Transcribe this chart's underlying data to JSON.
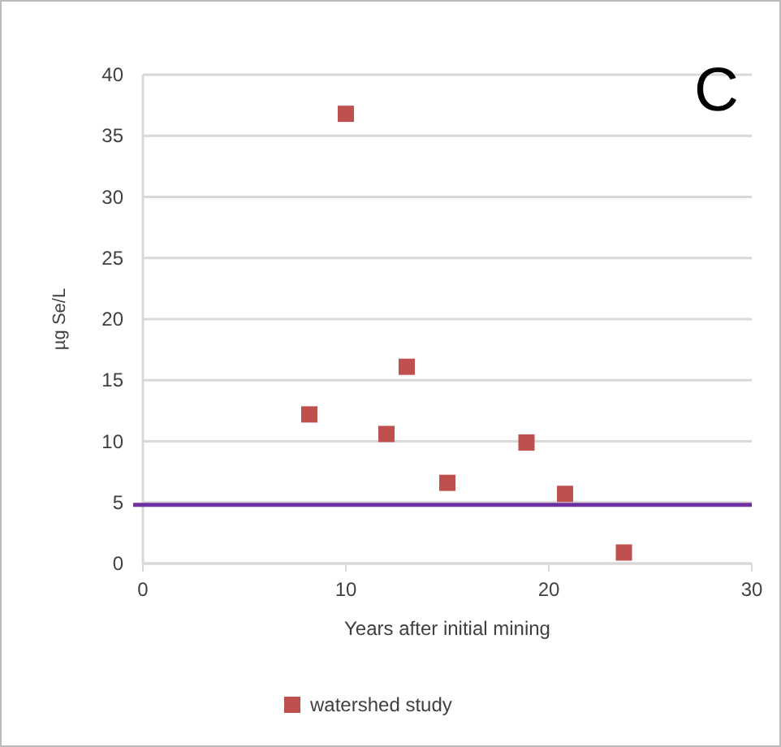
{
  "chart_data": {
    "type": "scatter",
    "ylabel": "µg Se/L",
    "xlabel": "Years after initial mining",
    "annotations": [
      "C"
    ],
    "xlim": [
      0,
      30
    ],
    "xticks": [
      0,
      10,
      20,
      30
    ],
    "ylim": [
      0,
      40
    ],
    "yticks": [
      0,
      5,
      10,
      15,
      20,
      25,
      30,
      35,
      40
    ],
    "grid": "y",
    "legend": "bottom",
    "marker": "square",
    "series": [
      {
        "name": "watershed study",
        "color": "#c0504d",
        "x": [
          10,
          8.2,
          13,
          12,
          15,
          18.9,
          20.8,
          23.7
        ],
        "values": [
          36.8,
          12.2,
          16.1,
          10.6,
          6.6,
          9.9,
          5.7,
          0.9
        ]
      }
    ],
    "ref_lines": [
      {
        "axis": "y",
        "value": 4.8,
        "color": "#7030a0"
      }
    ]
  }
}
